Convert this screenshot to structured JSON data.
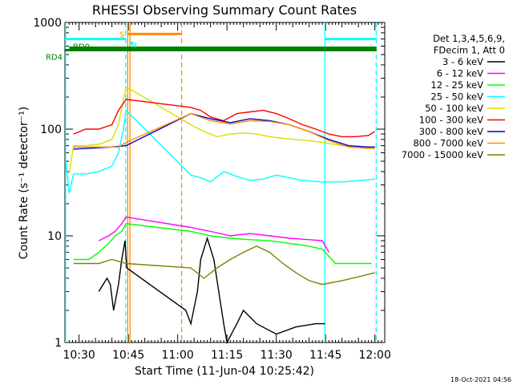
{
  "chart_data": {
    "type": "line",
    "title": "RHESSI Observing Summary Count Rates",
    "xlabel": "Start Time (11-Jun-04 10:25:42)",
    "ylabel": "Count Rate (s⁻¹ detector⁻¹)",
    "yscale": "log",
    "ylim": [
      1,
      1000
    ],
    "xlim_minutes": [
      25.7,
      123
    ],
    "x_ticks": [
      {
        "label": "10:30",
        "value": 30
      },
      {
        "label": "10:45",
        "value": 45
      },
      {
        "label": "11:00",
        "value": 60
      },
      {
        "label": "11:15",
        "value": 75
      },
      {
        "label": "11:30",
        "value": 90
      },
      {
        "label": "11:45",
        "value": 105
      },
      {
        "label": "12:00",
        "value": 120
      }
    ],
    "y_ticks": [
      {
        "label": "1",
        "value": 1
      },
      {
        "label": "10",
        "value": 10
      },
      {
        "label": "100",
        "value": 100
      },
      {
        "label": "1000",
        "value": 1000
      }
    ],
    "legend_header": [
      "Det 1,3,4,5,6,9,",
      "FDecim 1, Att 0"
    ],
    "legend_placement": "right",
    "series": [
      {
        "name": "3 - 6 keV",
        "color": "#000000",
        "points": [
          [
            36,
            3
          ],
          [
            38.5,
            4
          ],
          [
            39.5,
            3.5
          ],
          [
            40.5,
            2
          ],
          [
            42,
            3.5
          ],
          [
            43,
            6
          ],
          [
            44,
            9
          ],
          [
            44.5,
            5
          ],
          [
            62.5,
            2
          ],
          [
            64,
            1.5
          ],
          [
            66,
            3
          ],
          [
            67,
            6
          ],
          [
            69,
            9.5
          ],
          [
            71,
            6
          ],
          [
            72.5,
            3
          ],
          [
            74,
            1.5
          ],
          [
            75,
            1
          ],
          [
            78,
            1.5
          ],
          [
            80,
            2
          ],
          [
            84,
            1.5
          ],
          [
            90,
            1.2
          ],
          [
            96,
            1.4
          ],
          [
            102,
            1.5
          ],
          [
            104.8,
            1.5
          ]
        ]
      },
      {
        "name": "6 - 12 keV",
        "color": "#ff00ff",
        "points": [
          [
            36,
            9
          ],
          [
            39,
            10
          ],
          [
            41,
            11
          ],
          [
            43,
            13
          ],
          [
            44.3,
            15
          ],
          [
            64,
            12
          ],
          [
            70,
            11
          ],
          [
            76,
            10
          ],
          [
            82,
            10.5
          ],
          [
            88,
            10
          ],
          [
            94,
            9.5
          ],
          [
            100,
            9.2
          ],
          [
            104,
            9
          ],
          [
            106,
            7
          ]
        ]
      },
      {
        "name": "12 - 25 keV",
        "color": "#00ff00",
        "points": [
          [
            28.3,
            6
          ],
          [
            33,
            6
          ],
          [
            36,
            7
          ],
          [
            39,
            8.5
          ],
          [
            41,
            10
          ],
          [
            43,
            11
          ],
          [
            44.3,
            13
          ],
          [
            64,
            11
          ],
          [
            70,
            10
          ],
          [
            76,
            9.5
          ],
          [
            82,
            9.2
          ],
          [
            88,
            9
          ],
          [
            94,
            8.5
          ],
          [
            100,
            8
          ],
          [
            104,
            7.5
          ],
          [
            108,
            5.5
          ],
          [
            114,
            5.5
          ],
          [
            119,
            5.5
          ]
        ]
      },
      {
        "name": "25 - 50 keV",
        "color": "#00ffff",
        "points": [
          [
            26,
            50
          ],
          [
            27,
            25
          ],
          [
            28.3,
            38
          ],
          [
            32,
            38
          ],
          [
            36,
            40
          ],
          [
            40,
            45
          ],
          [
            42,
            60
          ],
          [
            43.5,
            100
          ],
          [
            44.3,
            150
          ],
          [
            64,
            37
          ],
          [
            67,
            35
          ],
          [
            70,
            32
          ],
          [
            74,
            40
          ],
          [
            78,
            36
          ],
          [
            82,
            33
          ],
          [
            86,
            34
          ],
          [
            90,
            37
          ],
          [
            94,
            35
          ],
          [
            98,
            33
          ],
          [
            104,
            32
          ],
          [
            110,
            32
          ],
          [
            116,
            33
          ],
          [
            120,
            34
          ]
        ]
      },
      {
        "name": "50 - 100 keV",
        "color": "#dddd00",
        "points": [
          [
            27,
            38
          ],
          [
            28.3,
            70
          ],
          [
            32,
            70
          ],
          [
            36,
            72
          ],
          [
            40,
            80
          ],
          [
            42,
            110
          ],
          [
            44.3,
            250
          ],
          [
            64,
            110
          ],
          [
            68,
            95
          ],
          [
            72,
            85
          ],
          [
            76,
            90
          ],
          [
            80,
            92
          ],
          [
            84,
            90
          ],
          [
            88,
            85
          ],
          [
            92,
            82
          ],
          [
            96,
            80
          ],
          [
            100,
            78
          ],
          [
            104,
            75
          ],
          [
            110,
            70
          ],
          [
            116,
            68
          ],
          [
            120,
            68
          ]
        ]
      },
      {
        "name": "100 - 300 keV",
        "color": "#ff0000",
        "points": [
          [
            28.3,
            90
          ],
          [
            32,
            100
          ],
          [
            36,
            100
          ],
          [
            40,
            110
          ],
          [
            42,
            150
          ],
          [
            44.3,
            190
          ],
          [
            64,
            160
          ],
          [
            67,
            150
          ],
          [
            70,
            130
          ],
          [
            74,
            120
          ],
          [
            78,
            140
          ],
          [
            82,
            145
          ],
          [
            86,
            150
          ],
          [
            90,
            140
          ],
          [
            94,
            125
          ],
          [
            98,
            110
          ],
          [
            102,
            100
          ],
          [
            106,
            90
          ],
          [
            110,
            85
          ],
          [
            114,
            85
          ],
          [
            118,
            87
          ],
          [
            120,
            95
          ]
        ]
      },
      {
        "name": "300 - 800 keV",
        "color": "#0000cc",
        "points": [
          [
            28.3,
            65
          ],
          [
            40,
            68
          ],
          [
            44.3,
            70
          ],
          [
            64,
            140
          ],
          [
            70,
            125
          ],
          [
            76,
            115
          ],
          [
            82,
            125
          ],
          [
            88,
            120
          ],
          [
            94,
            110
          ],
          [
            100,
            95
          ],
          [
            106,
            80
          ],
          [
            112,
            70
          ],
          [
            118,
            68
          ],
          [
            120,
            68
          ]
        ]
      },
      {
        "name": "800 - 7000 keV",
        "color": "#ff8c00",
        "points": [
          [
            28.3,
            68
          ],
          [
            36,
            68
          ],
          [
            42,
            68
          ],
          [
            44.3,
            75
          ],
          [
            64,
            140
          ],
          [
            70,
            120
          ],
          [
            76,
            112
          ],
          [
            82,
            120
          ],
          [
            88,
            118
          ],
          [
            94,
            110
          ],
          [
            100,
            95
          ],
          [
            106,
            78
          ],
          [
            112,
            68
          ],
          [
            118,
            66
          ],
          [
            120,
            66
          ]
        ]
      },
      {
        "name": "7000 - 15000 keV",
        "color": "#808000",
        "points": [
          [
            28.3,
            5.5
          ],
          [
            36,
            5.5
          ],
          [
            40,
            6
          ],
          [
            44.3,
            5.5
          ],
          [
            64,
            5
          ],
          [
            68,
            4
          ],
          [
            72,
            5
          ],
          [
            76,
            6
          ],
          [
            80,
            7
          ],
          [
            84,
            8
          ],
          [
            88,
            7
          ],
          [
            92,
            5.5
          ],
          [
            96,
            4.5
          ],
          [
            100,
            3.8
          ],
          [
            104,
            3.5
          ],
          [
            110,
            3.8
          ],
          [
            116,
            4.2
          ],
          [
            120,
            4.5
          ]
        ]
      }
    ],
    "attenuator_bars": [
      {
        "label": "RD4",
        "color": "#008000",
        "y": 550,
        "x_start": 25.7,
        "x_end": 120.5
      },
      {
        "label": "RD0",
        "color": "#008000",
        "y": 580,
        "x_start": 27,
        "x_end": 120.5
      }
    ],
    "flag_bars": [
      {
        "label": "S",
        "color": "#ff8c00",
        "y": 780,
        "x_start": 44.8,
        "x_end": 61
      },
      {
        "label": "N",
        "color": "#00ffff",
        "y": 640,
        "x_start": 45.5,
        "x_end": 46.5
      }
    ],
    "night_segments": [
      {
        "color": "#00ffff",
        "y": 700,
        "x_start": 25.7,
        "x_end": 44.2
      },
      {
        "color": "#00ffff",
        "y": 700,
        "x_start": 104.8,
        "x_end": 120.5
      }
    ],
    "vertical_lines": [
      {
        "x": 25.9,
        "color": "#00ffff",
        "style": "solid"
      },
      {
        "x": 44.2,
        "color": "#00ffff",
        "style": "dashed"
      },
      {
        "x": 44.8,
        "color": "#ff8c00",
        "style": "solid"
      },
      {
        "x": 45.5,
        "color": "#ff8c00",
        "style": "solid"
      },
      {
        "x": 61.2,
        "color": "#ff8c00",
        "style": "dashed"
      },
      {
        "x": 104.8,
        "color": "#00ffff",
        "style": "solid"
      },
      {
        "x": 120.4,
        "color": "#00ffff",
        "style": "dashed"
      }
    ],
    "grid": false
  },
  "footer": {
    "timestamp": "18-Oct-2021 04:56"
  }
}
